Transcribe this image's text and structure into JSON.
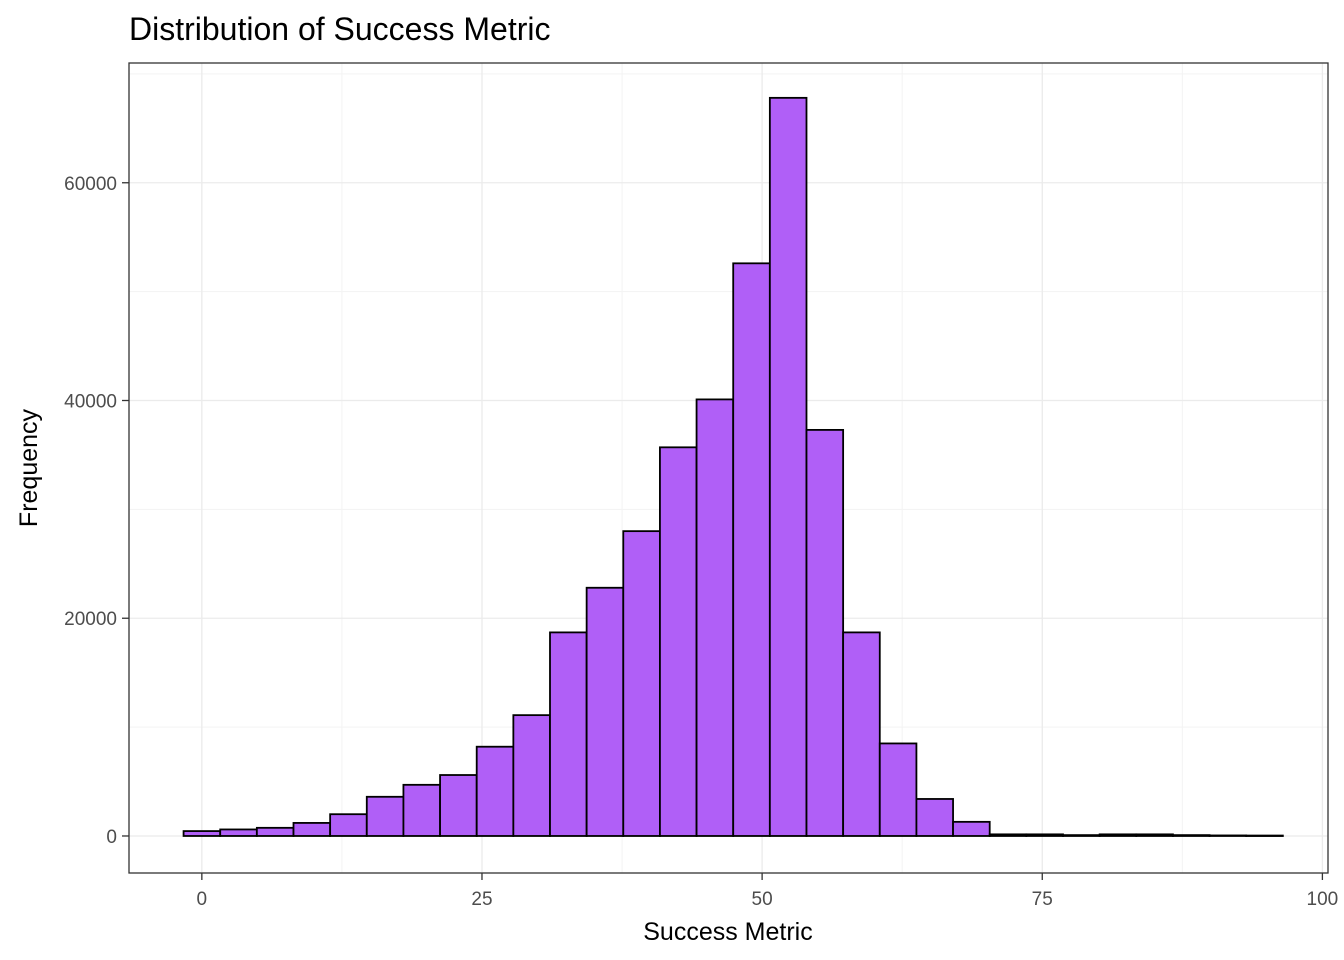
{
  "chart_data": {
    "type": "bar",
    "title": "Distribution of Success Metric",
    "xlabel": "Success Metric",
    "ylabel": "Frequency",
    "bin_width": 3.27,
    "bin_start": -1.63,
    "xlim": [
      -6.5,
      100.5
    ],
    "ylim": [
      -3400,
      71000
    ],
    "x_ticks": [
      0,
      25,
      50,
      75,
      100
    ],
    "y_ticks": [
      0,
      20000,
      40000,
      60000
    ],
    "grid": true,
    "bar_color": "#b05ff7",
    "bar_outline": "#000000",
    "values": [
      450,
      600,
      750,
      1200,
      2000,
      3600,
      4700,
      5600,
      8200,
      11100,
      18700,
      22800,
      28000,
      35700,
      40100,
      52600,
      67800,
      37300,
      18700,
      8500,
      3400,
      1300,
      150,
      150,
      80,
      150,
      150,
      80,
      50,
      40
    ]
  }
}
